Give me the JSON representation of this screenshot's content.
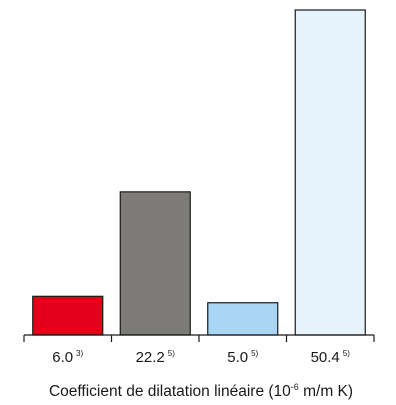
{
  "chart_data": {
    "type": "bar",
    "categories": [
      "6.0",
      "22.2",
      "5.0",
      "50.4"
    ],
    "footnotes": [
      "3)",
      "5)",
      "5)",
      "5)"
    ],
    "values": [
      6.0,
      22.2,
      5.0,
      50.4
    ],
    "colors": [
      "#e2001a",
      "#7c7b78",
      "#a9d6f5",
      "#e6f3fc"
    ],
    "ylim": [
      0,
      50.4
    ],
    "grid": false,
    "legend": "none",
    "xlabel": {
      "before": "Coefficient de dilatation linéaire (10",
      "superscript": "-6",
      "after": " m/m K)"
    }
  }
}
